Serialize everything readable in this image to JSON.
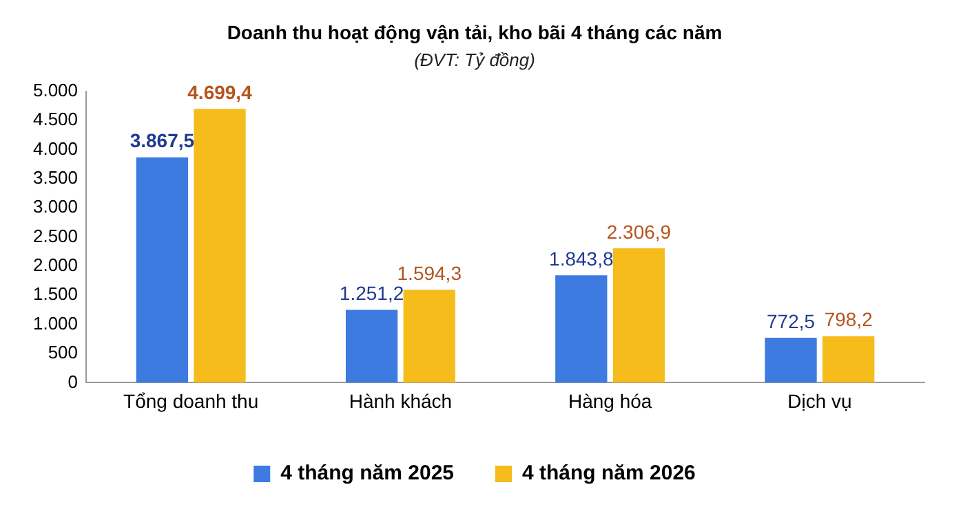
{
  "chart_data": {
    "type": "bar",
    "title": "Doanh thu hoạt động vận tải, kho bãi 4 tháng các năm",
    "subtitle": "(ĐVT: Tỷ đồng)",
    "categories": [
      "Tổng doanh thu",
      "Hành khách",
      "Hàng hóa",
      "Dịch vụ"
    ],
    "series": [
      {
        "name": "4 tháng năm 2025",
        "color": "#3d7be0",
        "values": [
          3867.5,
          1251.2,
          1843.8,
          772.5
        ],
        "value_labels": [
          "3.867,5",
          "1.251,2",
          "1.843,8",
          "772,5"
        ]
      },
      {
        "name": "4 tháng năm 2026",
        "color": "#f5bc1c",
        "values": [
          4699.4,
          1594.3,
          2306.9,
          798.2
        ],
        "value_labels": [
          "4.699,4",
          "1.594,3",
          "2.306,9",
          "798,2"
        ]
      }
    ],
    "ylim": [
      0,
      5000
    ],
    "yticks": [
      0,
      {
        "value": 500,
        "label": "500"
      },
      {
        "value": 1000,
        "label": "1.000"
      },
      {
        "value": 1500,
        "label": "1.500"
      },
      {
        "value": 2000,
        "label": "2.000"
      },
      {
        "value": 2500,
        "label": "2.500"
      },
      {
        "value": 3000,
        "label": "3.000"
      },
      {
        "value": 3500,
        "label": "3.500"
      },
      {
        "value": 4000,
        "label": "4.000"
      },
      {
        "value": 4500,
        "label": "4.500"
      },
      {
        "value": 5000,
        "label": "5.000"
      }
    ],
    "grid": false,
    "legend": "bottom"
  }
}
